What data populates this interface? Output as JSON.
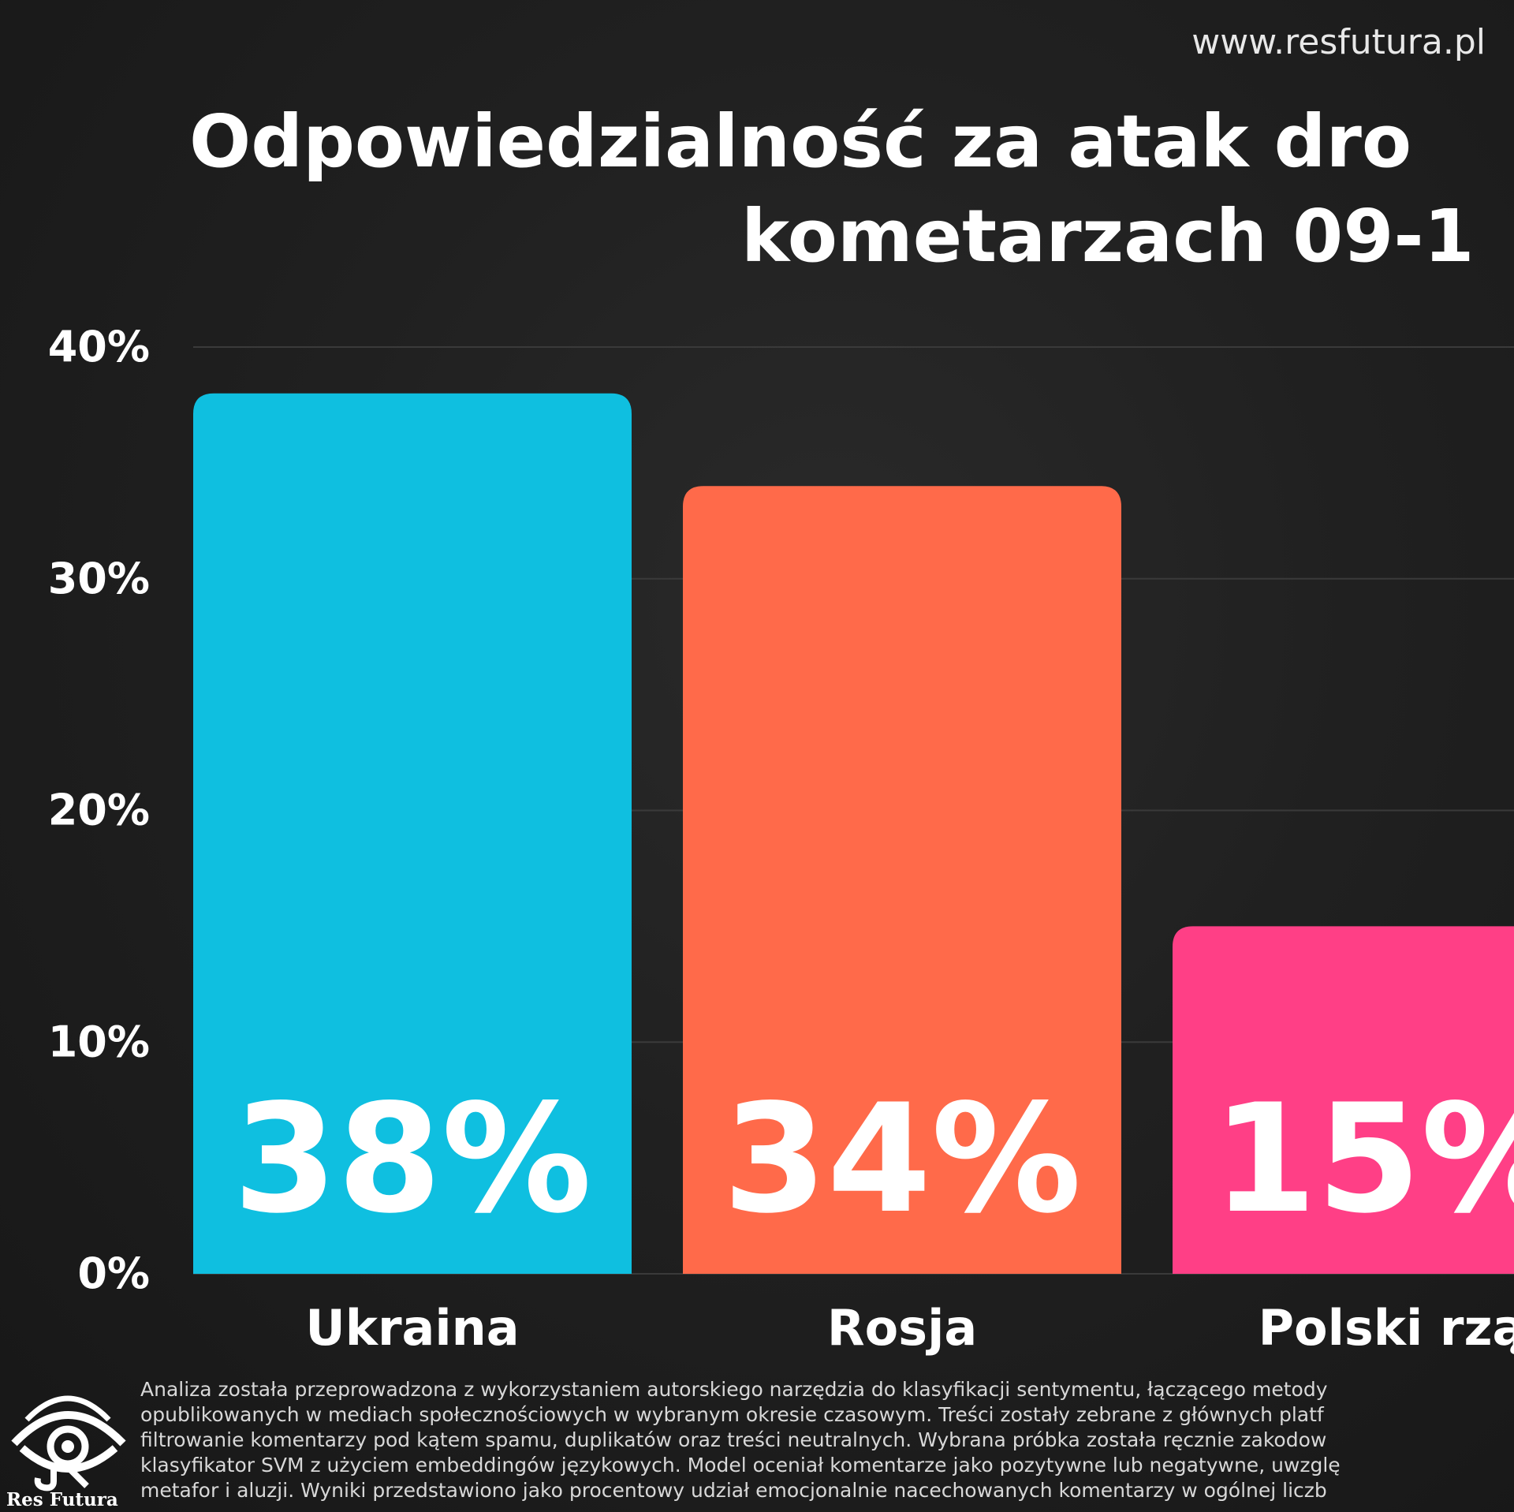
{
  "website": "www.resfutura.pl",
  "title": {
    "line1": "Odpowiedzialność za atak dro",
    "line2": "kometarzach 09-1"
  },
  "colors": {
    "background": "#1c1c1c",
    "ukraina": "#0fbfe0",
    "rosja": "#ff6a4a",
    "polski_rzad": "#ff3f86"
  },
  "chart_data": {
    "type": "bar",
    "categories": [
      "Ukraina",
      "Rosja",
      "Polski rzą"
    ],
    "values": [
      38,
      34,
      15
    ],
    "data_labels": [
      "38%",
      "34%",
      "15%"
    ],
    "yticks": [
      "0%",
      "10%",
      "20%",
      "30%",
      "40%"
    ],
    "ylim": [
      0,
      40
    ],
    "grid": true,
    "colors": [
      "#0fbfe0",
      "#ff6a4a",
      "#ff3f86"
    ]
  },
  "footer": {
    "logo_text": "Res Futura",
    "methodology_lines": [
      "Analiza została przeprowadzona z wykorzystaniem autorskiego narzędzia do klasyfikacji sentymentu, łączącego metody",
      "opublikowanych w mediach społecznościowych w wybranym okresie czasowym. Treści zostały zebrane z głównych platf",
      "filtrowanie komentarzy pod kątem spamu, duplikatów oraz treści neutralnych. Wybrana próbka została ręcznie zakodow",
      "klasyfikator SVM z użyciem embeddingów językowych. Model oceniał komentarze jako pozytywne lub negatywne, uwzglę",
      "metafor i aluzji. Wyniki przedstawiono jako procentowy udział emocjonalnie nacechowanych komentarzy w ogólnej liczb"
    ]
  }
}
